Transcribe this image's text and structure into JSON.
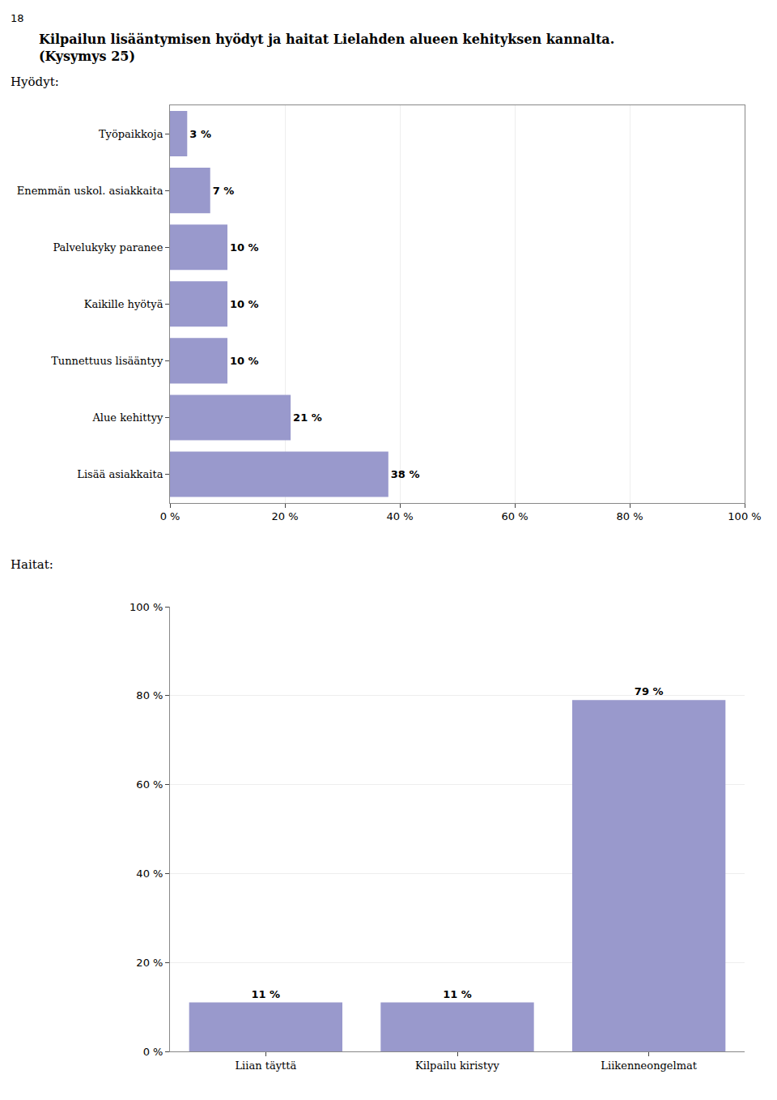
{
  "title": "Kilpailun lisääntymisen hyödyt ja haitat Lielahden alueen kehityksen kannalta.",
  "subtitle": "(Kysymys 25)",
  "annotations": [
    "18"
  ],
  "chart_data": [
    {
      "type": "bar",
      "title": "Hyödyt:",
      "orientation": "horizontal",
      "categories": [
        "Työpaikkoja",
        "Enemmän uskol. asiakkaita",
        "Palvelukyky paranee",
        "Kaikille hyötyä",
        "Tunnettuus lisääntyy",
        "Alue kehittyy",
        "Lisää asiakkaita"
      ],
      "values": [
        3,
        7,
        10,
        10,
        10,
        21,
        38
      ],
      "value_labels": [
        "3 %",
        "7 %",
        "10 %",
        "10 %",
        "10 %",
        "21 %",
        "38 %"
      ],
      "data_labels": true,
      "color": "#9999cc",
      "xlim": [
        0,
        100
      ],
      "xticks": [
        {
          "value": 0,
          "label": "0 %"
        },
        {
          "value": 20,
          "label": "20 %"
        },
        {
          "value": 40,
          "label": "40 %"
        },
        {
          "value": 60,
          "label": "60 %"
        },
        {
          "value": 80,
          "label": "80 %"
        },
        {
          "value": 100,
          "label": "100 %"
        }
      ],
      "grid": true
    },
    {
      "type": "bar",
      "title": "Haitat:",
      "categories": [
        "Liian täyttä",
        "Kilpailu kiristyy",
        "Liikenneongelmat"
      ],
      "values": [
        11,
        11,
        79
      ],
      "value_labels": [
        "11 %",
        "11 %",
        "79 %"
      ],
      "data_labels": true,
      "color": "#9999cc",
      "ylim": [
        0,
        100
      ],
      "yticks": [
        {
          "value": 0,
          "label": "0 %"
        },
        {
          "value": 20,
          "label": "20 %"
        },
        {
          "value": 40,
          "label": "40 %"
        },
        {
          "value": 60,
          "label": "60 %"
        },
        {
          "value": 80,
          "label": "80 %"
        },
        {
          "value": 100,
          "label": "100 %"
        }
      ],
      "grid": true
    }
  ]
}
